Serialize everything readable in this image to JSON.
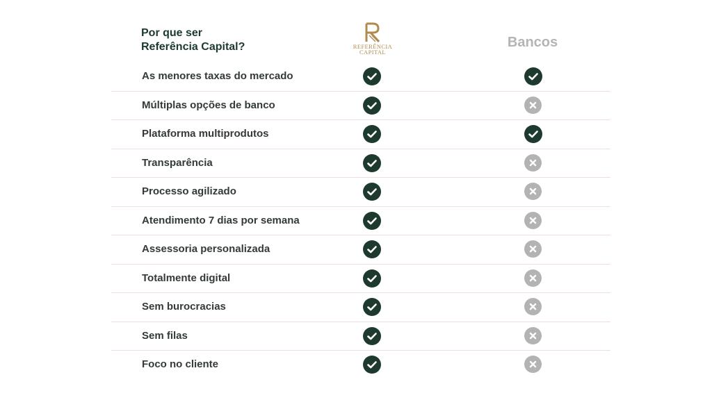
{
  "header": {
    "title_line1": "Por que ser",
    "title_line2": "Referência Capital?",
    "logo": {
      "name": "referencia-capital-logo",
      "text_line1": "REFERÊNCIA",
      "text_line2": "CAPITAL",
      "color": "#b08a4e"
    },
    "competitor_label": "Bancos"
  },
  "colors": {
    "title": "#1d3a2e",
    "check": "#1e3a2f",
    "cross": "#b3b3b3",
    "divider": "#f0dede",
    "row_text": "#333a38"
  },
  "rows": [
    {
      "label": "As menores taxas do mercado",
      "referencia": "check",
      "bancos": "check"
    },
    {
      "label": "Múltiplas opções de banco",
      "referencia": "check",
      "bancos": "cross"
    },
    {
      "label": "Plataforma multiprodutos",
      "referencia": "check",
      "bancos": "check"
    },
    {
      "label": "Transparência",
      "referencia": "check",
      "bancos": "cross"
    },
    {
      "label": "Processo agilizado",
      "referencia": "check",
      "bancos": "cross"
    },
    {
      "label": "Atendimento 7 dias por semana",
      "referencia": "check",
      "bancos": "cross"
    },
    {
      "label": "Assessoria personalizada",
      "referencia": "check",
      "bancos": "cross"
    },
    {
      "label": "Totalmente digital",
      "referencia": "check",
      "bancos": "cross"
    },
    {
      "label": "Sem burocracias",
      "referencia": "check",
      "bancos": "cross"
    },
    {
      "label": "Sem filas",
      "referencia": "check",
      "bancos": "cross"
    },
    {
      "label": "Foco no cliente",
      "referencia": "check",
      "bancos": "cross"
    }
  ]
}
